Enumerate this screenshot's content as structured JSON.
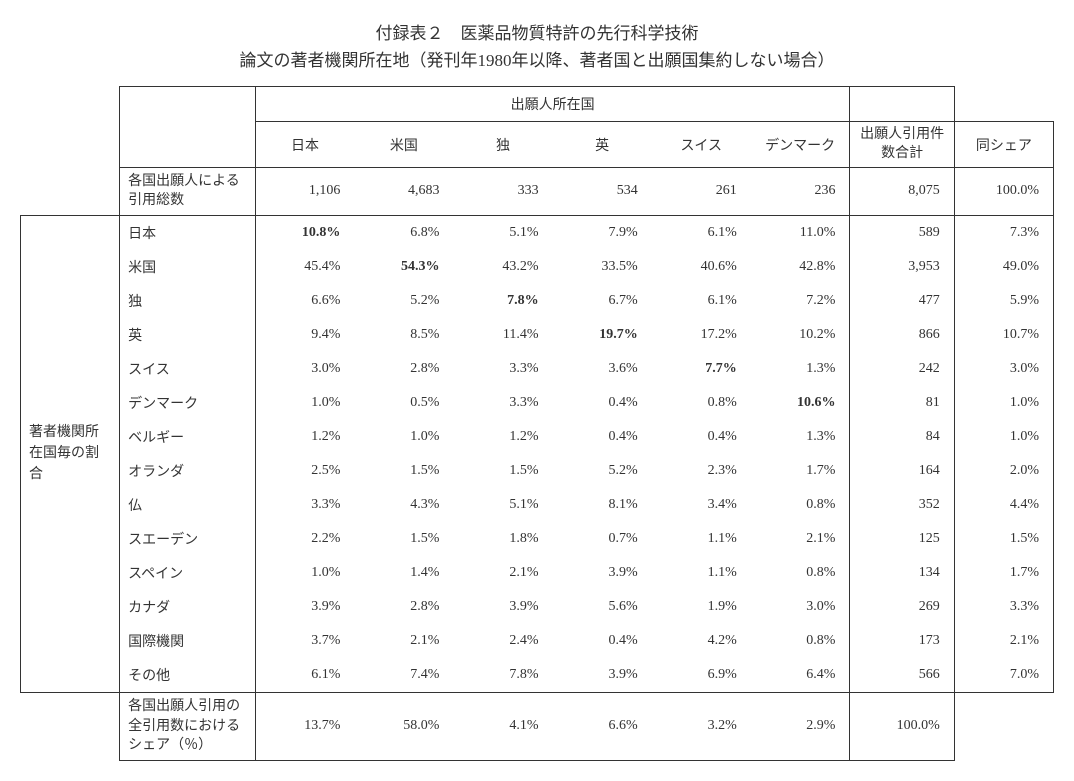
{
  "title_line1": "付録表２　医薬品物質特許の先行科学技術",
  "title_line2": "論文の著者機関所在地（発刊年1980年以降、著者国と出願国集約しない場合）",
  "col_group_header": "出願人所在国",
  "col_headers": [
    "日本",
    "米国",
    "独",
    "英",
    "スイス",
    "デンマーク"
  ],
  "col_sum_header": "出願人引用件数合計",
  "col_share_header": "同シェア",
  "totals_row_label": "各国出願人による引用総数",
  "totals": [
    "1,106",
    "4,683",
    "333",
    "534",
    "261",
    "236",
    "8,075",
    "100.0%"
  ],
  "side_group_label": "著者機関所在国毎の割合",
  "rows": [
    {
      "label": "日本",
      "vals": [
        "10.8%",
        "6.8%",
        "5.1%",
        "7.9%",
        "6.1%",
        "11.0%",
        "589",
        "7.3%"
      ],
      "bold": [
        true,
        false,
        false,
        false,
        false,
        false,
        false,
        false
      ]
    },
    {
      "label": "米国",
      "vals": [
        "45.4%",
        "54.3%",
        "43.2%",
        "33.5%",
        "40.6%",
        "42.8%",
        "3,953",
        "49.0%"
      ],
      "bold": [
        false,
        true,
        false,
        false,
        false,
        false,
        false,
        false
      ]
    },
    {
      "label": "独",
      "vals": [
        "6.6%",
        "5.2%",
        "7.8%",
        "6.7%",
        "6.1%",
        "7.2%",
        "477",
        "5.9%"
      ],
      "bold": [
        false,
        false,
        true,
        false,
        false,
        false,
        false,
        false
      ]
    },
    {
      "label": "英",
      "vals": [
        "9.4%",
        "8.5%",
        "11.4%",
        "19.7%",
        "17.2%",
        "10.2%",
        "866",
        "10.7%"
      ],
      "bold": [
        false,
        false,
        false,
        true,
        false,
        false,
        false,
        false
      ]
    },
    {
      "label": "スイス",
      "vals": [
        "3.0%",
        "2.8%",
        "3.3%",
        "3.6%",
        "7.7%",
        "1.3%",
        "242",
        "3.0%"
      ],
      "bold": [
        false,
        false,
        false,
        false,
        true,
        false,
        false,
        false
      ]
    },
    {
      "label": "デンマーク",
      "vals": [
        "1.0%",
        "0.5%",
        "3.3%",
        "0.4%",
        "0.8%",
        "10.6%",
        "81",
        "1.0%"
      ],
      "bold": [
        false,
        false,
        false,
        false,
        false,
        true,
        false,
        false
      ]
    },
    {
      "label": "ベルギー",
      "vals": [
        "1.2%",
        "1.0%",
        "1.2%",
        "0.4%",
        "0.4%",
        "1.3%",
        "84",
        "1.0%"
      ],
      "bold": [
        false,
        false,
        false,
        false,
        false,
        false,
        false,
        false
      ]
    },
    {
      "label": "オランダ",
      "vals": [
        "2.5%",
        "1.5%",
        "1.5%",
        "5.2%",
        "2.3%",
        "1.7%",
        "164",
        "2.0%"
      ],
      "bold": [
        false,
        false,
        false,
        false,
        false,
        false,
        false,
        false
      ]
    },
    {
      "label": "仏",
      "vals": [
        "3.3%",
        "4.3%",
        "5.1%",
        "8.1%",
        "3.4%",
        "0.8%",
        "352",
        "4.4%"
      ],
      "bold": [
        false,
        false,
        false,
        false,
        false,
        false,
        false,
        false
      ]
    },
    {
      "label": "スエーデン",
      "vals": [
        "2.2%",
        "1.5%",
        "1.8%",
        "0.7%",
        "1.1%",
        "2.1%",
        "125",
        "1.5%"
      ],
      "bold": [
        false,
        false,
        false,
        false,
        false,
        false,
        false,
        false
      ]
    },
    {
      "label": "スペイン",
      "vals": [
        "1.0%",
        "1.4%",
        "2.1%",
        "3.9%",
        "1.1%",
        "0.8%",
        "134",
        "1.7%"
      ],
      "bold": [
        false,
        false,
        false,
        false,
        false,
        false,
        false,
        false
      ]
    },
    {
      "label": "カナダ",
      "vals": [
        "3.9%",
        "2.8%",
        "3.9%",
        "5.6%",
        "1.9%",
        "3.0%",
        "269",
        "3.3%"
      ],
      "bold": [
        false,
        false,
        false,
        false,
        false,
        false,
        false,
        false
      ]
    },
    {
      "label": "国際機関",
      "vals": [
        "3.7%",
        "2.1%",
        "2.4%",
        "0.4%",
        "4.2%",
        "0.8%",
        "173",
        "2.1%"
      ],
      "bold": [
        false,
        false,
        false,
        false,
        false,
        false,
        false,
        false
      ]
    },
    {
      "label": "その他",
      "vals": [
        "6.1%",
        "7.4%",
        "7.8%",
        "3.9%",
        "6.9%",
        "6.4%",
        "566",
        "7.0%"
      ],
      "bold": [
        false,
        false,
        false,
        false,
        false,
        false,
        false,
        false
      ]
    }
  ],
  "footer_label": "各国出願人引用の全引用数におけるシェア（％）",
  "footer_vals": [
    "13.7%",
    "58.0%",
    "4.1%",
    "6.6%",
    "3.2%",
    "2.9%",
    "100.0%"
  ],
  "style": {
    "text_color": "#333333",
    "border_color": "#333333",
    "background": "#ffffff",
    "font_size_body": 14,
    "font_size_title": 17
  }
}
